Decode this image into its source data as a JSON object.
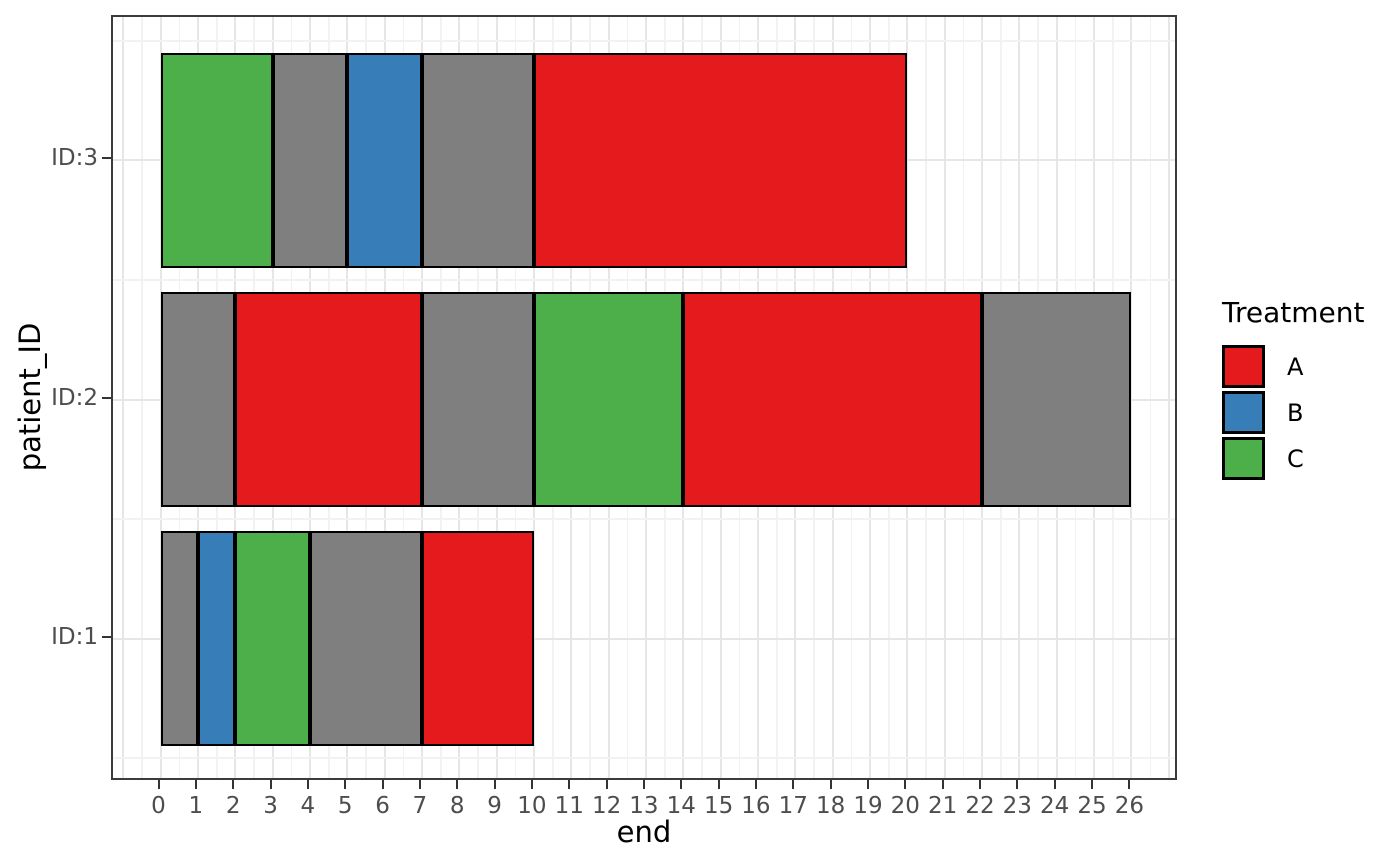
{
  "chart_data": {
    "type": "bar",
    "orientation": "horizontal",
    "description": "Stacked horizontal interval bars showing treatment timelines per patient; gray segments are untreated (NA) intervals",
    "title": "",
    "xlabel": "end",
    "ylabel": "patient_ID",
    "x_axis": {
      "breaks": [
        0,
        1,
        2,
        3,
        4,
        5,
        6,
        7,
        8,
        9,
        10,
        11,
        12,
        13,
        14,
        15,
        16,
        17,
        18,
        19,
        20,
        21,
        22,
        23,
        24,
        25,
        26
      ],
      "minor_step": 0.5,
      "range_shown": [
        -1.27,
        27.27
      ]
    },
    "y_axis": {
      "categories_bottom_to_top": [
        "ID:1",
        "ID:2",
        "ID:3"
      ]
    },
    "grid": true,
    "bars": [
      {
        "patient": "ID:3",
        "segments": [
          {
            "start": 0,
            "end": 3,
            "treatment": "C"
          },
          {
            "start": 3,
            "end": 5,
            "treatment": "NA"
          },
          {
            "start": 5,
            "end": 7,
            "treatment": "B"
          },
          {
            "start": 7,
            "end": 10,
            "treatment": "NA"
          },
          {
            "start": 10,
            "end": 20,
            "treatment": "A"
          }
        ]
      },
      {
        "patient": "ID:2",
        "segments": [
          {
            "start": 0,
            "end": 2,
            "treatment": "NA"
          },
          {
            "start": 2,
            "end": 7,
            "treatment": "A"
          },
          {
            "start": 7,
            "end": 10,
            "treatment": "NA"
          },
          {
            "start": 10,
            "end": 14,
            "treatment": "C"
          },
          {
            "start": 14,
            "end": 22,
            "treatment": "A"
          },
          {
            "start": 22,
            "end": 26,
            "treatment": "NA"
          }
        ]
      },
      {
        "patient": "ID:1",
        "segments": [
          {
            "start": 0,
            "end": 1,
            "treatment": "NA"
          },
          {
            "start": 1,
            "end": 2,
            "treatment": "B"
          },
          {
            "start": 2,
            "end": 4,
            "treatment": "C"
          },
          {
            "start": 4,
            "end": 7,
            "treatment": "NA"
          },
          {
            "start": 7,
            "end": 10,
            "treatment": "A"
          }
        ]
      }
    ],
    "colors": {
      "A": "#E41A1C",
      "B": "#377EB8",
      "C": "#4DAF4A",
      "NA": "#7F7F7F"
    },
    "legend": {
      "title": "Treatment",
      "position": "right",
      "entries": [
        {
          "label": "A",
          "color": "#E41A1C"
        },
        {
          "label": "B",
          "color": "#377EB8"
        },
        {
          "label": "C",
          "color": "#4DAF4A"
        }
      ]
    }
  }
}
